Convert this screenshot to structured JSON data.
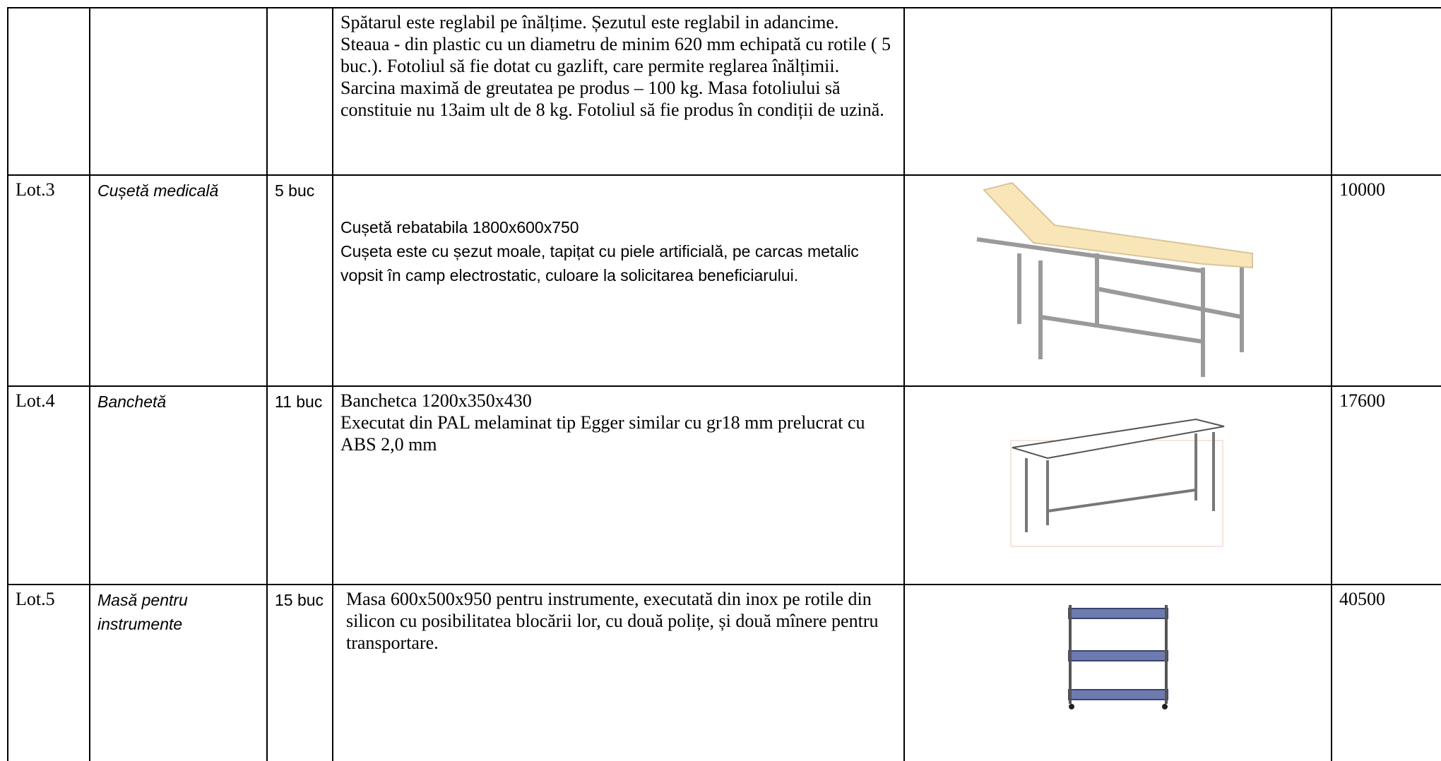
{
  "table": {
    "rows": [
      {
        "description": [
          "Spătarul este reglabil pe înălțime. Șezutul este reglabil in adancime.",
          "Steaua -  din plastic cu un diametru de minim 620 mm echipată cu rotile ( 5 buc.). Fotoliul să fie dotat cu gazlift, care permite reglarea înălțimii. Sarcina maximă  de greutatea pe  produs – 100 kg. Masa fotoliului să constituie nu 13aim ult de 8 kg. Fotoliul  să fie produs în condiții de uzină."
        ]
      },
      {
        "lot": "Lot.3",
        "name": "Cușetă medicală",
        "quantity": "5 buc",
        "description": [
          "Cușetă rebatabila 1800x600x750",
          "Cușeta este cu șezut moale, tapițat cu piele artificială, pe carcas metalic vopsit în camp electrostatic, culoare la solicitarea beneficiarului."
        ],
        "price": "10000"
      },
      {
        "lot": "Lot.4",
        "name": "Banchetă",
        "quantity": "11 buc",
        "description": [
          "Banchetca 1200x350x430",
          "Executat din PAL  melaminat tip Egger similar cu gr18 mm prelucrat cu ABS 2,0 mm"
        ],
        "price": "17600"
      },
      {
        "lot": "Lot.5",
        "name": "Masă pentru instrumente",
        "quantity": "15 buc",
        "description": [
          "Masa 600x500x950 pentru instrumente, executată din inox pe rotile din silicon cu posibilitatea blocării lor, cu două polițe, și două mînere pentru transportare."
        ],
        "price": "40500"
      }
    ]
  }
}
